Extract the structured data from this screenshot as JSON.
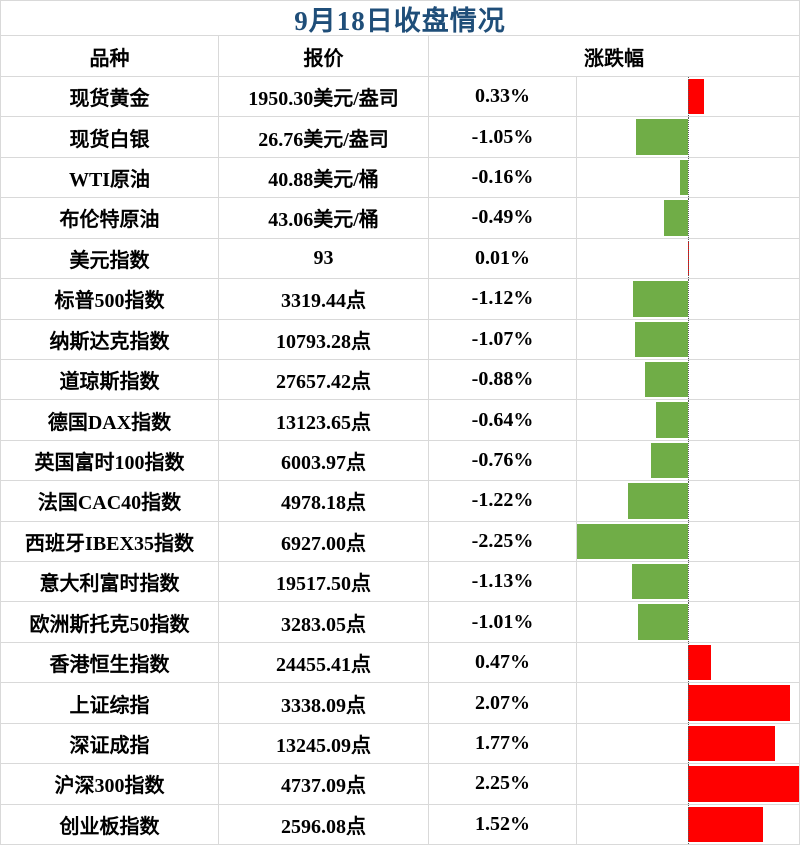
{
  "title": "9月18日收盘情况",
  "columns": {
    "name": "品种",
    "quote": "报价",
    "change": "涨跌幅"
  },
  "rows": [
    {
      "name": "现货黄金",
      "quote": "1950.30美元/盎司",
      "change": "0.33%"
    },
    {
      "name": "现货白银",
      "quote": "26.76美元/盎司",
      "change": "-1.05%"
    },
    {
      "name": "WTI原油",
      "quote": "40.88美元/桶",
      "change": "-0.16%"
    },
    {
      "name": "布伦特原油",
      "quote": "43.06美元/桶",
      "change": "-0.49%"
    },
    {
      "name": "美元指数",
      "quote": "93",
      "change": "0.01%"
    },
    {
      "name": "标普500指数",
      "quote": "3319.44点",
      "change": "-1.12%"
    },
    {
      "name": "纳斯达克指数",
      "quote": "10793.28点",
      "change": "-1.07%"
    },
    {
      "name": "道琼斯指数",
      "quote": "27657.42点",
      "change": "-0.88%"
    },
    {
      "name": "德国DAX指数",
      "quote": "13123.65点",
      "change": "-0.64%"
    },
    {
      "name": "英国富时100指数",
      "quote": "6003.97点",
      "change": "-0.76%"
    },
    {
      "name": "法国CAC40指数",
      "quote": "4978.18点",
      "change": "-1.22%"
    },
    {
      "name": "西班牙IBEX35指数",
      "quote": "6927.00点",
      "change": "-2.25%"
    },
    {
      "name": "意大利富时指数",
      "quote": "19517.50点",
      "change": "-1.13%"
    },
    {
      "name": "欧洲斯托克50指数",
      "quote": "3283.05点",
      "change": "-1.01%"
    },
    {
      "name": "香港恒生指数",
      "quote": "24455.41点",
      "change": "0.47%"
    },
    {
      "name": "上证综指",
      "quote": "3338.09点",
      "change": "2.07%"
    },
    {
      "name": "深证成指",
      "quote": "13245.09点",
      "change": "1.77%"
    },
    {
      "name": "沪深300指数",
      "quote": "4737.09点",
      "change": "2.25%"
    },
    {
      "name": "创业板指数",
      "quote": "2596.08点",
      "change": "1.52%"
    }
  ],
  "chart_data": {
    "type": "bar",
    "orientation": "horizontal",
    "title": "9月18日收盘情况",
    "categories": [
      "现货黄金",
      "现货白银",
      "WTI原油",
      "布伦特原油",
      "美元指数",
      "标普500指数",
      "纳斯达克指数",
      "道琼斯指数",
      "德国DAX指数",
      "英国富时100指数",
      "法国CAC40指数",
      "西班牙IBEX35指数",
      "意大利富时指数",
      "欧洲斯托克50指数",
      "香港恒生指数",
      "上证综指",
      "深证成指",
      "沪深300指数",
      "创业板指数"
    ],
    "values": [
      0.33,
      -1.05,
      -0.16,
      -0.49,
      0.01,
      -1.12,
      -1.07,
      -0.88,
      -0.64,
      -0.76,
      -1.22,
      -2.25,
      -1.13,
      -1.01,
      0.47,
      2.07,
      1.77,
      2.25,
      1.52
    ],
    "value_unit": "%",
    "xlim": [
      -2.25,
      2.25
    ],
    "axis_style": "dotted-center-line",
    "grid": false,
    "legend": false,
    "positive_color": "#FF0000",
    "negative_color": "#70AD47"
  },
  "colors": {
    "title_text": "#1F4E79",
    "grid_line": "#D9D9D9",
    "axis_line": "#595959",
    "positive_bar": "#FF0000",
    "negative_bar": "#70AD47"
  }
}
